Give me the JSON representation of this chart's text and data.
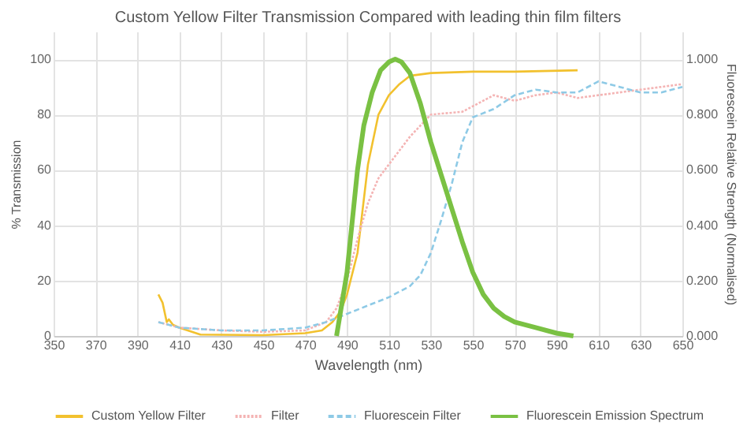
{
  "chart_data": {
    "type": "line",
    "title": "Custom Yellow Filter Transmission Compared with leading thin film filters",
    "xlabel": "Wavelength (nm)",
    "ylabel": "% Transmission",
    "y2label": "Fluorescein Relative Strength (Normalised)",
    "xlim": [
      350,
      650
    ],
    "xticks": [
      350,
      370,
      390,
      410,
      430,
      450,
      470,
      490,
      510,
      530,
      550,
      570,
      590,
      610,
      630,
      650
    ],
    "ylim": [
      0,
      110
    ],
    "yticks": [
      0,
      20,
      40,
      60,
      80,
      100
    ],
    "y2lim": [
      0,
      1.1
    ],
    "y2ticks": [
      {
        "value": 0,
        "label": "0.000"
      },
      {
        "value": 0.2,
        "label": "0.200"
      },
      {
        "value": 0.4,
        "label": "0.400"
      },
      {
        "value": 0.6,
        "label": "0.600"
      },
      {
        "value": 0.8,
        "label": "0.800"
      },
      {
        "value": 1,
        "label": "1.000"
      }
    ],
    "grid": true,
    "legend": "bottom",
    "marker": "none",
    "series": [
      {
        "name": "Custom Yellow Filter",
        "color": "#f2c12e",
        "line_style": "solid",
        "x": [
          400,
          402,
          404,
          405,
          407,
          410,
          420,
          450,
          470,
          478,
          483,
          487,
          490,
          495,
          500,
          505,
          510,
          515,
          520,
          530,
          550,
          570,
          600
        ],
        "values": [
          15,
          12,
          5,
          6,
          4,
          3,
          0.5,
          0.3,
          1,
          2,
          5,
          9,
          15,
          30,
          62,
          80,
          87,
          91,
          94,
          95,
          95.5,
          95.5,
          96
        ]
      },
      {
        "name": "Filter",
        "color": "#f4b4b4",
        "line_style": "dotted",
        "x": [
          400,
          410,
          430,
          450,
          470,
          480,
          485,
          490,
          495,
          500,
          505,
          510,
          520,
          530,
          545,
          560,
          570,
          580,
          590,
          600,
          620,
          650
        ],
        "values": [
          5,
          3,
          2,
          1.5,
          2,
          5,
          10,
          20,
          35,
          48,
          57,
          62,
          72,
          80,
          81,
          87,
          85,
          87,
          88,
          86,
          88,
          91
        ]
      },
      {
        "name": "Fluorescein Filter",
        "color": "#8ecae6",
        "line_style": "dashed",
        "x": [
          400,
          410,
          430,
          450,
          470,
          480,
          490,
          500,
          510,
          520,
          525,
          530,
          535,
          540,
          545,
          550,
          560,
          570,
          580,
          590,
          600,
          610,
          620,
          630,
          640,
          650
        ],
        "values": [
          5,
          3,
          2,
          2,
          3,
          5,
          8,
          11,
          14,
          18,
          22,
          30,
          42,
          55,
          70,
          79,
          82,
          87,
          89,
          88,
          88,
          92,
          90,
          88,
          88,
          90
        ]
      },
      {
        "name": "Fluorescein Emission Spectrum",
        "color": "#7ac143",
        "line_style": "solid",
        "axis": "y2",
        "x": [
          485,
          490,
          495,
          498,
          502,
          506,
          510,
          513,
          516,
          520,
          525,
          530,
          535,
          540,
          545,
          550,
          555,
          560,
          565,
          570,
          580,
          590,
          598
        ],
        "values": [
          0,
          0.23,
          0.6,
          0.76,
          0.88,
          0.96,
          0.99,
          1.0,
          0.99,
          0.95,
          0.84,
          0.7,
          0.58,
          0.46,
          0.34,
          0.23,
          0.15,
          0.1,
          0.07,
          0.05,
          0.03,
          0.01,
          0
        ]
      }
    ]
  }
}
